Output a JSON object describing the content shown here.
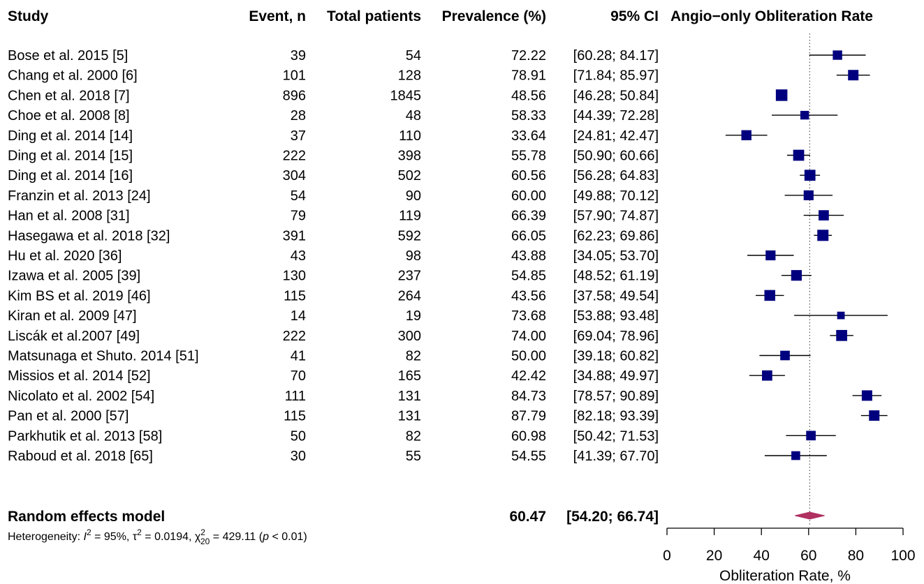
{
  "chart_data": {
    "type": "forest",
    "title": "Angio−only Obliteration Rate",
    "headers": {
      "study": "Study",
      "event": "Event, n",
      "total": "Total patients",
      "prevalence": "Prevalence (%)",
      "ci": "95% CI",
      "plot": "Angio−only Obliteration Rate"
    },
    "studies": [
      {
        "study": "Bose et al. 2015 [5]",
        "event": "39",
        "total": "54",
        "prevalence": "72.22",
        "ci": "[60.28; 84.17]",
        "est": 72.22,
        "lo": 60.28,
        "hi": 84.17,
        "weight": 4.0
      },
      {
        "study": "Chang et al. 2000 [6]",
        "event": "101",
        "total": "128",
        "prevalence": "78.91",
        "ci": "[71.84; 85.97]",
        "est": 78.91,
        "lo": 71.84,
        "hi": 85.97,
        "weight": 4.6
      },
      {
        "study": "Chen et al. 2018 [7]",
        "event": "896",
        "total": "1845",
        "prevalence": "48.56",
        "ci": "[46.28; 50.84]",
        "est": 48.56,
        "lo": 46.28,
        "hi": 50.84,
        "weight": 5.2
      },
      {
        "study": "Choe et al. 2008 [8]",
        "event": "28",
        "total": "48",
        "prevalence": "58.33",
        "ci": "[44.39; 72.28]",
        "est": 58.33,
        "lo": 44.39,
        "hi": 72.28,
        "weight": 3.6
      },
      {
        "study": "Ding et al. 2014 [14]",
        "event": "37",
        "total": "110",
        "prevalence": "33.64",
        "ci": "[24.81; 42.47]",
        "est": 33.64,
        "lo": 24.81,
        "hi": 42.47,
        "weight": 4.4
      },
      {
        "study": "Ding et al. 2014 [15]",
        "event": "222",
        "total": "398",
        "prevalence": "55.78",
        "ci": "[50.90; 60.66]",
        "est": 55.78,
        "lo": 50.9,
        "hi": 60.66,
        "weight": 4.9
      },
      {
        "study": "Ding et al. 2014 [16]",
        "event": "304",
        "total": "502",
        "prevalence": "60.56",
        "ci": "[56.28; 64.83]",
        "est": 60.56,
        "lo": 56.28,
        "hi": 64.83,
        "weight": 4.9
      },
      {
        "study": "Franzin et al. 2013 [24]",
        "event": "54",
        "total": "90",
        "prevalence": "60.00",
        "ci": "[49.88; 70.12]",
        "est": 60.0,
        "lo": 49.88,
        "hi": 70.12,
        "weight": 4.3
      },
      {
        "study": "Han et al. 2008 [31]",
        "event": "79",
        "total": "119",
        "prevalence": "66.39",
        "ci": "[57.90; 74.87]",
        "est": 66.39,
        "lo": 57.9,
        "hi": 74.87,
        "weight": 4.5
      },
      {
        "study": "Hasegawa et al. 2018 [32]",
        "event": "391",
        "total": "592",
        "prevalence": "66.05",
        "ci": "[62.23; 69.86]",
        "est": 66.05,
        "lo": 62.23,
        "hi": 69.86,
        "weight": 5.0
      },
      {
        "study": "Hu et al. 2020 [36]",
        "event": "43",
        "total": "98",
        "prevalence": "43.88",
        "ci": "[34.05; 53.70]",
        "est": 43.88,
        "lo": 34.05,
        "hi": 53.7,
        "weight": 4.3
      },
      {
        "study": "Izawa et al. 2005 [39]",
        "event": "130",
        "total": "237",
        "prevalence": "54.85",
        "ci": "[48.52; 61.19]",
        "est": 54.85,
        "lo": 48.52,
        "hi": 61.19,
        "weight": 4.7
      },
      {
        "study": "Kim BS et al. 2019 [46]",
        "event": "115",
        "total": "264",
        "prevalence": "43.56",
        "ci": "[37.58; 49.54]",
        "est": 43.56,
        "lo": 37.58,
        "hi": 49.54,
        "weight": 4.8
      },
      {
        "study": "Kiran et al. 2009 [47]",
        "event": "14",
        "total": "19",
        "prevalence": "73.68",
        "ci": "[53.88; 93.48]",
        "est": 73.68,
        "lo": 53.88,
        "hi": 93.48,
        "weight": 3.0
      },
      {
        "study": "Liscák et al.2007 [49]",
        "event": "222",
        "total": "300",
        "prevalence": "74.00",
        "ci": "[69.04; 78.96]",
        "est": 74.0,
        "lo": 69.04,
        "hi": 78.96,
        "weight": 4.9
      },
      {
        "study": "Matsunaga et Shuto. 2014 [51]",
        "event": "41",
        "total": "82",
        "prevalence": "50.00",
        "ci": "[39.18; 60.82]",
        "est": 50.0,
        "lo": 39.18,
        "hi": 60.82,
        "weight": 4.1
      },
      {
        "study": "Missios et al. 2014 [52]",
        "event": "70",
        "total": "165",
        "prevalence": "42.42",
        "ci": "[34.88; 49.97]",
        "est": 42.42,
        "lo": 34.88,
        "hi": 49.97,
        "weight": 4.5
      },
      {
        "study": "Nicolato et al. 2002 [54]",
        "event": "111",
        "total": "131",
        "prevalence": "84.73",
        "ci": "[78.57; 90.89]",
        "est": 84.73,
        "lo": 78.57,
        "hi": 90.89,
        "weight": 4.6
      },
      {
        "study": "Pan et al. 2000 [57]",
        "event": "115",
        "total": "131",
        "prevalence": "87.79",
        "ci": "[82.18; 93.39]",
        "est": 87.79,
        "lo": 82.18,
        "hi": 93.39,
        "weight": 4.6
      },
      {
        "study": "Parkhutik et al. 2013 [58]",
        "event": "50",
        "total": "82",
        "prevalence": "60.98",
        "ci": "[50.42; 71.53]",
        "est": 60.98,
        "lo": 50.42,
        "hi": 71.53,
        "weight": 4.1
      },
      {
        "study": "Raboud et al. 2018 [65]",
        "event": "30",
        "total": "55",
        "prevalence": "54.55",
        "ci": "[41.39; 67.70]",
        "est": 54.55,
        "lo": 41.39,
        "hi": 67.7,
        "weight": 3.7
      }
    ],
    "pooled": {
      "label": "Random effects model",
      "prevalence": "60.47",
      "ci": "[54.20; 66.74]",
      "est": 60.47,
      "lo": 54.2,
      "hi": 66.74
    },
    "heterogeneity": {
      "prefix": "Heterogeneity: ",
      "i2_sym": "I",
      "i2_sup": "2",
      "i2_val": " = 95%, ",
      "tau_sym": "τ",
      "tau_sup": "2",
      "tau_val": " = 0.0194, ",
      "chi_sym": "χ",
      "chi_sup": "2",
      "chi_sub": "20",
      "chi_val": " = 429.11 (",
      "p_sym": "p",
      "p_val": " < 0.01)"
    },
    "xaxis": {
      "label": "Obliteration Rate, %",
      "ticks": [
        0,
        20,
        40,
        60,
        80,
        100
      ],
      "range": [
        0,
        100
      ]
    },
    "reference_line": 60.47,
    "colors": {
      "square": "#00007f",
      "diamond": "#b03060",
      "line": "#000000"
    }
  }
}
